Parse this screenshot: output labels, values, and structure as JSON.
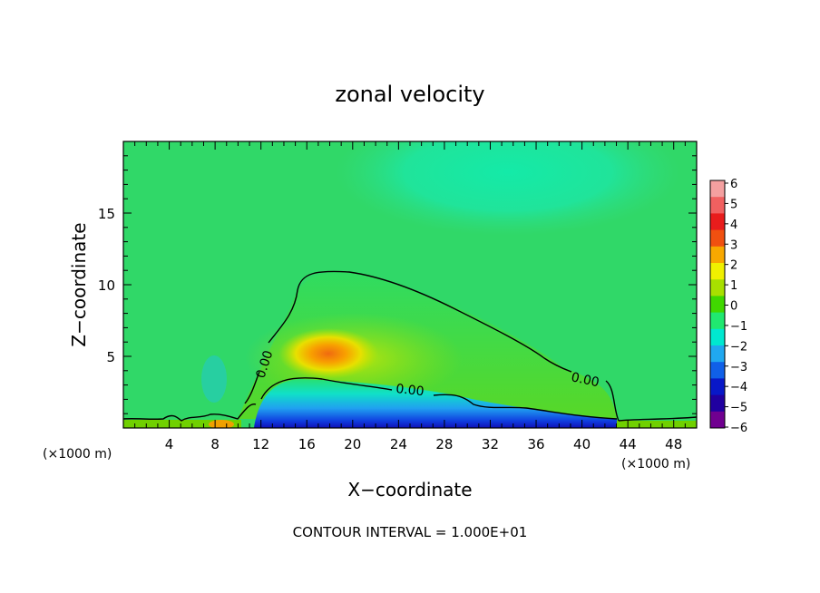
{
  "chart_data": {
    "type": "heatmap",
    "title": "zonal velocity",
    "xlabel": "X−coordinate",
    "ylabel": "Z−coordinate",
    "x_unit_left": "(×1000 m)",
    "x_unit_right": "(×1000 m)",
    "footer": "CONTOUR INTERVAL = 1.000E+01",
    "xlim": [
      0,
      50
    ],
    "ylim": [
      0,
      20
    ],
    "x_ticks": [
      4,
      8,
      12,
      16,
      20,
      24,
      28,
      32,
      36,
      40,
      44,
      48
    ],
    "x_tick_labels": [
      "4",
      "8",
      "12",
      "16",
      "20",
      "24",
      "28",
      "32",
      "36",
      "40",
      "44",
      "48"
    ],
    "y_ticks": [
      5,
      10,
      15
    ],
    "y_tick_labels": [
      "5",
      "10",
      "15"
    ],
    "colorbar": {
      "levels": [
        6,
        5,
        4,
        3,
        2,
        1,
        0,
        -1,
        -2,
        -3,
        -4,
        -5,
        -6
      ],
      "labels": [
        "6",
        "5",
        "4",
        "3",
        "2",
        "1",
        "0",
        "−1",
        "−2",
        "−3",
        "−4",
        "−5",
        "−6"
      ],
      "colors": [
        "#f4a0a0",
        "#f06060",
        "#e81c1c",
        "#f05010",
        "#f8a800",
        "#f0f000",
        "#a8e000",
        "#40d800",
        "#20e870",
        "#00e8d0",
        "#20a8f0",
        "#1060e8",
        "#0818c8",
        "#2000a0",
        "#700090"
      ]
    },
    "contours": [
      {
        "label": "0.00",
        "level": 0
      },
      {
        "label": "0.00",
        "level": 0
      },
      {
        "label": "0.00",
        "level": 0
      }
    ],
    "features": [
      {
        "name": "positive jet core",
        "x": 18,
        "z": 5.2,
        "value": 3
      },
      {
        "name": "negative surface layer",
        "x": 24,
        "z": 0.8,
        "value": -4
      },
      {
        "name": "upper negative region",
        "x": 34,
        "z": 18,
        "value": -2
      }
    ]
  }
}
